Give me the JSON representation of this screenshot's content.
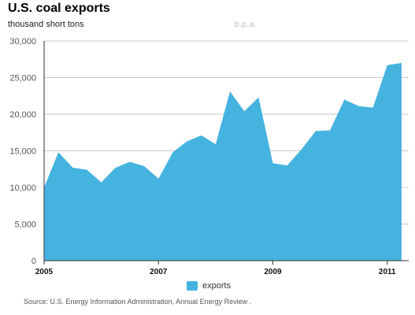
{
  "header": {
    "title": "U.S. coal exports",
    "subtitle": "thousand short tons",
    "watermark": "b.p.a."
  },
  "legend": {
    "label": "exports",
    "color": "#45b3e0"
  },
  "source": "Source: U.S. Energy Information Administration,  Annual Energy Review .",
  "chart_data": {
    "type": "area",
    "title": "U.S. coal exports",
    "subtitle": "thousand short tons",
    "xlabel": "",
    "ylabel": "",
    "xlim": [
      2005.0,
      2011.375
    ],
    "ylim": [
      0,
      30000
    ],
    "yticks": [
      0,
      5000,
      10000,
      15000,
      20000,
      25000,
      30000
    ],
    "ytick_labels": [
      "0",
      "5,000",
      "10,000",
      "15,000",
      "20,000",
      "25,000",
      "30,000"
    ],
    "xticks": [
      2005,
      2007,
      2009,
      2011
    ],
    "xtick_labels": [
      "2005",
      "2007",
      "2009",
      "2011"
    ],
    "grid": true,
    "legend_position": "bottom-center",
    "series": [
      {
        "name": "exports",
        "color": "#45b3e0",
        "x": [
          2005.0,
          2005.25,
          2005.5,
          2005.75,
          2006.0,
          2006.25,
          2006.5,
          2006.75,
          2007.0,
          2007.25,
          2007.5,
          2007.75,
          2008.0,
          2008.25,
          2008.5,
          2008.75,
          2009.0,
          2009.25,
          2009.5,
          2009.75,
          2010.0,
          2010.25,
          2010.5,
          2010.75,
          2011.0,
          2011.25
        ],
        "values": [
          10000,
          14800,
          12700,
          12400,
          10700,
          12700,
          13500,
          12900,
          11200,
          14800,
          16300,
          17100,
          15900,
          23100,
          20400,
          22300,
          13300,
          13000,
          15200,
          17700,
          17800,
          22000,
          21100,
          20900,
          26700,
          27000
        ]
      }
    ]
  }
}
